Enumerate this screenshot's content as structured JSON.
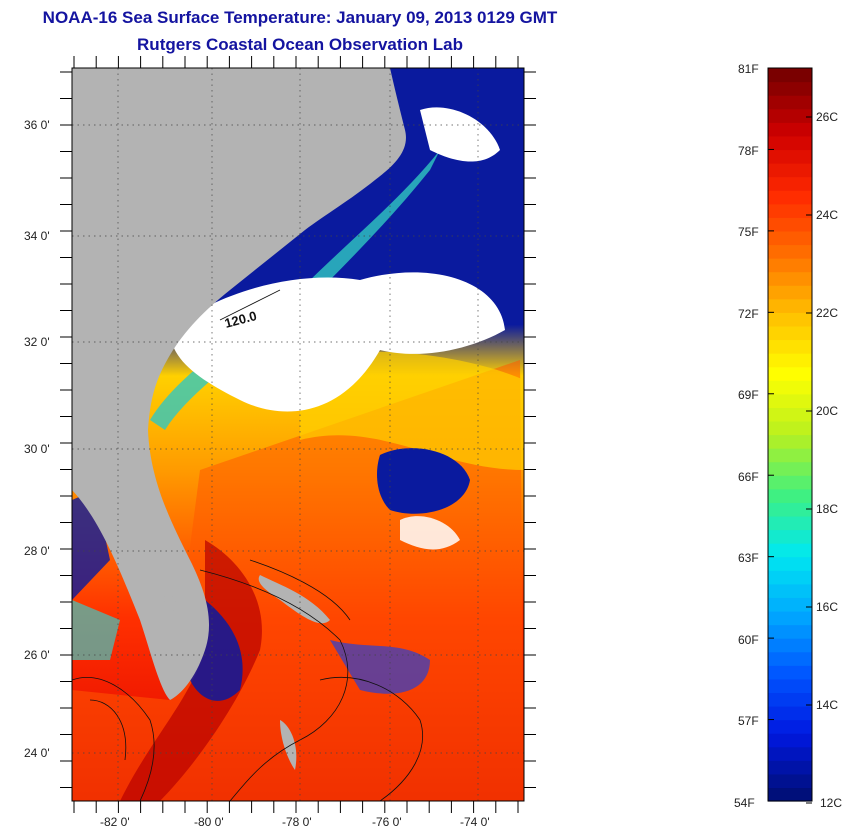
{
  "title_line1": "NOAA-16 Sea Surface Temperature:  January 09, 2013 0129 GMT",
  "title_line2": "Rutgers Coastal Ocean Observation Lab",
  "map": {
    "lat_ticks": [
      "36 0'",
      "34 0'",
      "32 0'",
      "30 0'",
      "28 0'",
      "26 0'",
      "24 0'"
    ],
    "lon_ticks": [
      "-82 0'",
      "-80 0'",
      "-78 0'",
      "-76 0'",
      "-74 0'"
    ],
    "contour_label": "120.0",
    "colors": {
      "land": "#b3b3b3",
      "cloud": "#ffffff",
      "cold_water": "#0a1a9e"
    }
  },
  "colorbar": {
    "fahrenheit": [
      "81F",
      "78F",
      "75F",
      "72F",
      "69F",
      "66F",
      "63F",
      "60F",
      "57F",
      "54F"
    ],
    "celsius": [
      "26C",
      "24C",
      "22C",
      "20C",
      "18C",
      "16C",
      "14C",
      "12C"
    ],
    "stops": [
      "#000f7a",
      "#0018e0",
      "#0055ff",
      "#00a8ff",
      "#00e8f0",
      "#40f080",
      "#b8f020",
      "#ffff00",
      "#ffc000",
      "#ff7000",
      "#ff2a00",
      "#d00000",
      "#7a0000"
    ]
  }
}
